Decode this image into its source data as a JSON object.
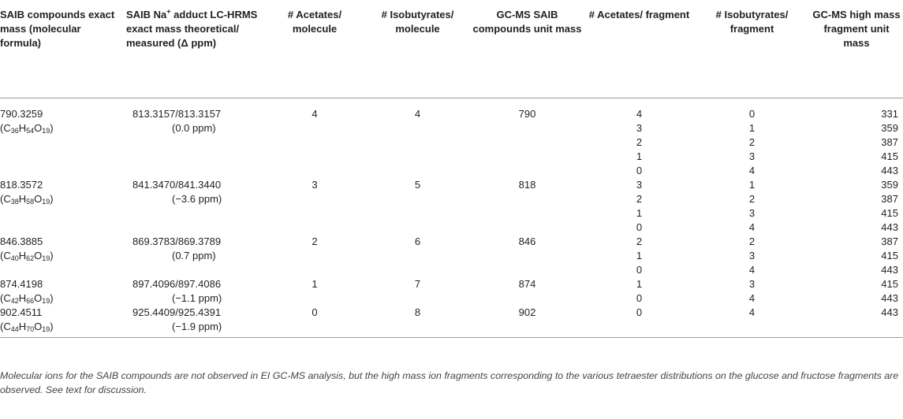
{
  "headers": [
    "SAIB compounds exact mass (molecular formula)",
    "SAIB Na adduct LC-HRMS exact mass theoretical/ measured (Δ ppm)",
    "# Acetates/ molecule",
    "# Isobutyrates/ molecule",
    "GC-MS SAIB compounds unit mass",
    "# Acetates/ fragment",
    "# Isobutyrates/ fragment",
    "GC-MS high mass fragment unit mass"
  ],
  "header_parts": {
    "na_pre": "SAIB Na",
    "na_sup": "+",
    "na_post": " adduct LC-HRMS exact mass theoretical/ measured (Δ ppm)"
  },
  "groups": [
    {
      "exact_mass": "790.3259",
      "formula": {
        "c": "36",
        "h": "54",
        "o": "19"
      },
      "adduct": "813.3157/813.3157",
      "ppm": "(0.0 ppm)",
      "acetates": "4",
      "isobutyrates": "4",
      "unit_mass": "790",
      "fragments": [
        {
          "acetates": "4",
          "isobutyrates": "0",
          "mass": "331"
        },
        {
          "acetates": "3",
          "isobutyrates": "1",
          "mass": "359"
        },
        {
          "acetates": "2",
          "isobutyrates": "2",
          "mass": "387"
        },
        {
          "acetates": "1",
          "isobutyrates": "3",
          "mass": "415"
        },
        {
          "acetates": "0",
          "isobutyrates": "4",
          "mass": "443"
        }
      ]
    },
    {
      "exact_mass": "818.3572",
      "formula": {
        "c": "38",
        "h": "58",
        "o": "19"
      },
      "adduct": "841.3470/841.3440",
      "ppm": "(−3.6 ppm)",
      "acetates": "3",
      "isobutyrates": "5",
      "unit_mass": "818",
      "fragments": [
        {
          "acetates": "3",
          "isobutyrates": "1",
          "mass": "359"
        },
        {
          "acetates": "2",
          "isobutyrates": "2",
          "mass": "387"
        },
        {
          "acetates": "1",
          "isobutyrates": "3",
          "mass": "415"
        },
        {
          "acetates": "0",
          "isobutyrates": "4",
          "mass": "443"
        }
      ]
    },
    {
      "exact_mass": "846.3885",
      "formula": {
        "c": "40",
        "h": "62",
        "o": "19"
      },
      "adduct": "869.3783/869.3789",
      "ppm": "(0.7 ppm)",
      "acetates": "2",
      "isobutyrates": "6",
      "unit_mass": "846",
      "fragments": [
        {
          "acetates": "2",
          "isobutyrates": "2",
          "mass": "387"
        },
        {
          "acetates": "1",
          "isobutyrates": "3",
          "mass": "415"
        },
        {
          "acetates": "0",
          "isobutyrates": "4",
          "mass": "443"
        }
      ]
    },
    {
      "exact_mass": "874.4198",
      "formula": {
        "c": "42",
        "h": "66",
        "o": "19"
      },
      "adduct": "897.4096/897.4086",
      "ppm": "(−1.1 ppm)",
      "acetates": "1",
      "isobutyrates": "7",
      "unit_mass": "874",
      "fragments": [
        {
          "acetates": "1",
          "isobutyrates": "3",
          "mass": "415"
        },
        {
          "acetates": "0",
          "isobutyrates": "4",
          "mass": "443"
        }
      ]
    },
    {
      "exact_mass": "902.4511",
      "formula": {
        "c": "44",
        "h": "70",
        "o": "19"
      },
      "adduct": "925.4409/925.4391",
      "ppm": "(−1.9 ppm)",
      "acetates": "0",
      "isobutyrates": "8",
      "unit_mass": "902",
      "fragments": [
        {
          "acetates": "0",
          "isobutyrates": "4",
          "mass": "443"
        }
      ]
    }
  ],
  "footnote": "Molecular ions for the SAIB compounds are not observed in EI GC-MS analysis, but the high mass ion fragments corresponding to the various tetraester distributions on the glucose and fructose fragments are observed. See text for discussion."
}
